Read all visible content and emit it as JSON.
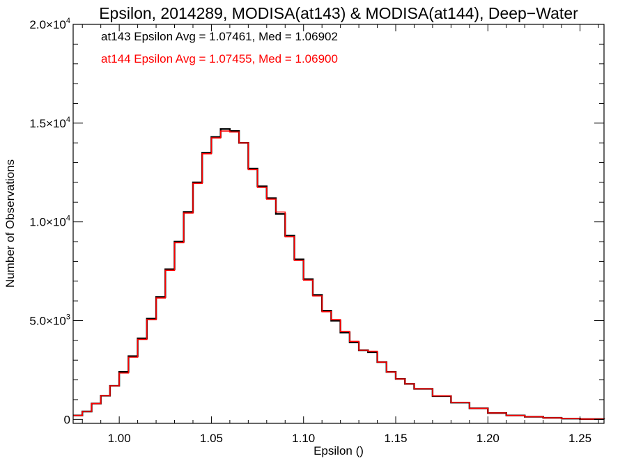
{
  "chart_data": {
    "type": "line",
    "title": "Epsilon, 2014289, MODISA(at143) & MODISA(at144), Deep−Water",
    "xlabel": "Epsilon ()",
    "ylabel": "Number of Observations",
    "xlim": [
      0.975,
      1.263
    ],
    "ylim": [
      -200,
      20000
    ],
    "x_ticks": [
      {
        "value": 1.0,
        "label": "1.00"
      },
      {
        "value": 1.05,
        "label": "1.05"
      },
      {
        "value": 1.1,
        "label": "1.10"
      },
      {
        "value": 1.15,
        "label": "1.15"
      },
      {
        "value": 1.2,
        "label": "1.20"
      },
      {
        "value": 1.25,
        "label": "1.25"
      }
    ],
    "y_ticks": [
      {
        "value": 0,
        "mant": "0",
        "exp": ""
      },
      {
        "value": 5000,
        "mant": "5.0×10",
        "exp": "3"
      },
      {
        "value": 10000,
        "mant": "1.0×10",
        "exp": "4"
      },
      {
        "value": 15000,
        "mant": "1.5×10",
        "exp": "4"
      },
      {
        "value": 20000,
        "mant": "2.0×10",
        "exp": "4"
      }
    ],
    "grid": false,
    "step": "histogram",
    "series": [
      {
        "name": "at143",
        "color": "#000000",
        "annotation": "at143 Epsilon Avg = 1.07461, Med = 1.06902",
        "x": [
          0.975,
          0.98,
          0.985,
          0.99,
          0.995,
          1.0,
          1.005,
          1.01,
          1.015,
          1.02,
          1.025,
          1.03,
          1.035,
          1.04,
          1.045,
          1.05,
          1.055,
          1.06,
          1.065,
          1.07,
          1.075,
          1.08,
          1.085,
          1.09,
          1.095,
          1.1,
          1.105,
          1.11,
          1.115,
          1.12,
          1.125,
          1.13,
          1.135,
          1.14,
          1.145,
          1.15,
          1.155,
          1.16,
          1.17,
          1.18,
          1.19,
          1.2,
          1.21,
          1.22,
          1.23,
          1.24,
          1.25,
          1.263
        ],
        "y": [
          200,
          400,
          800,
          1200,
          1700,
          2400,
          3200,
          4100,
          5100,
          6200,
          7600,
          9000,
          10500,
          12000,
          13500,
          14300,
          14700,
          14600,
          14000,
          12700,
          11800,
          11200,
          10400,
          9300,
          8100,
          7100,
          6300,
          5500,
          5000,
          4400,
          3900,
          3500,
          3400,
          2900,
          2400,
          2050,
          1800,
          1550,
          1180,
          850,
          560,
          320,
          200,
          130,
          80,
          40,
          20,
          0
        ]
      },
      {
        "name": "at144",
        "color": "#ff0000",
        "annotation": "at144 Epsilon Avg = 1.07455, Med = 1.06900",
        "x": [
          0.975,
          0.98,
          0.985,
          0.99,
          0.995,
          1.0,
          1.005,
          1.01,
          1.015,
          1.02,
          1.025,
          1.03,
          1.035,
          1.04,
          1.045,
          1.05,
          1.055,
          1.06,
          1.065,
          1.07,
          1.075,
          1.08,
          1.085,
          1.09,
          1.095,
          1.1,
          1.105,
          1.11,
          1.115,
          1.12,
          1.125,
          1.13,
          1.135,
          1.14,
          1.145,
          1.15,
          1.155,
          1.16,
          1.17,
          1.18,
          1.19,
          1.2,
          1.21,
          1.22,
          1.23,
          1.24,
          1.25,
          1.263
        ],
        "y": [
          200,
          400,
          800,
          1200,
          1700,
          2350,
          3150,
          4050,
          5050,
          6150,
          7550,
          8950,
          10450,
          11950,
          13450,
          14250,
          14600,
          14550,
          14000,
          12650,
          11750,
          11150,
          10500,
          9250,
          8050,
          7050,
          6250,
          5450,
          5050,
          4450,
          3950,
          3500,
          3450,
          2900,
          2400,
          2050,
          1800,
          1550,
          1190,
          860,
          560,
          330,
          200,
          130,
          80,
          40,
          20,
          0
        ]
      }
    ]
  }
}
